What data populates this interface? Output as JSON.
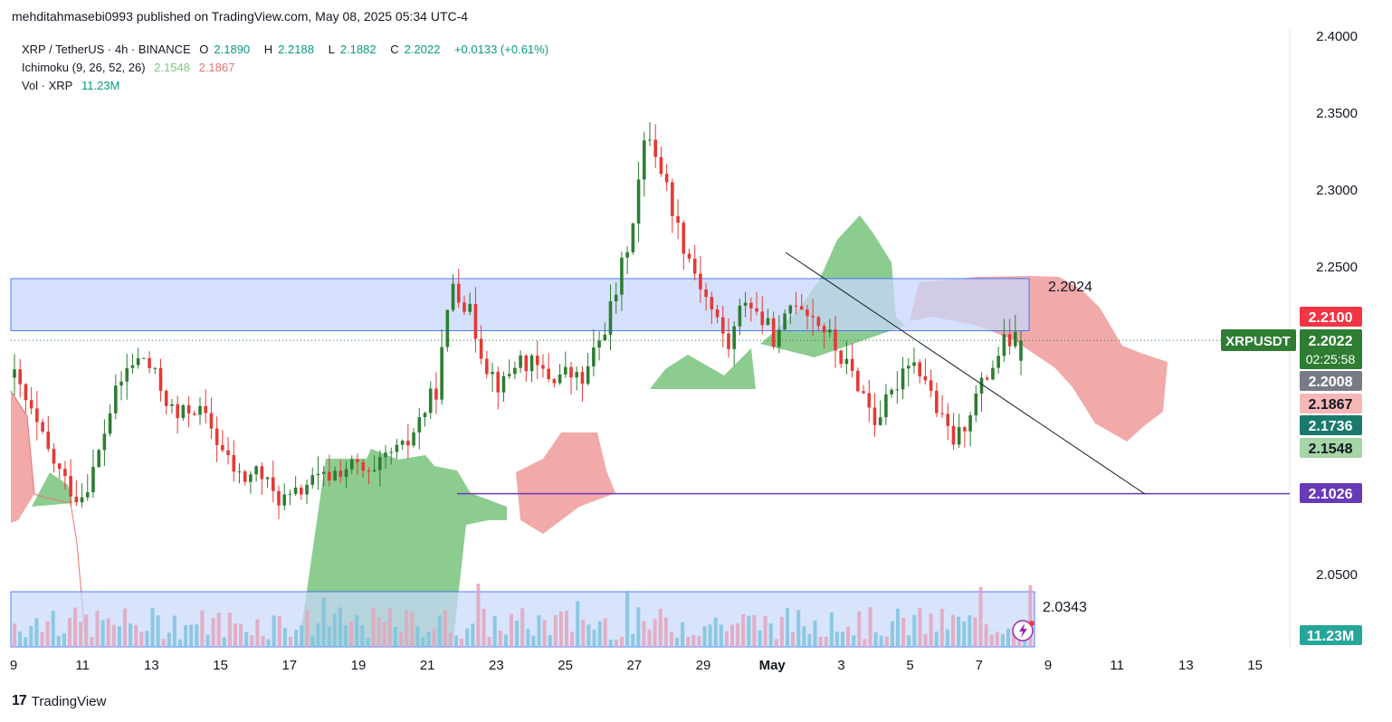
{
  "publisher": "mehditahmasebi0993 published on TradingView.com, May 08, 2025 05:34 UTC-4",
  "legend": {
    "symbol": "XRP / TetherUS · 4h · BINANCE",
    "o_label": "O",
    "o": "2.1890",
    "h_label": "H",
    "h": "2.2188",
    "l_label": "L",
    "l": "2.1882",
    "c_label": "C",
    "c": "2.2022",
    "change": "+0.0133 (+0.61%)",
    "ichimoku_label": "Ichimoku (9, 26, 52, 26)",
    "ichimoku_v1": "2.1548",
    "ichimoku_v2": "2.1867",
    "vol_label": "Vol · XRP",
    "vol_value": "11.23M"
  },
  "brand": "TradingView",
  "colors": {
    "up": "#089981",
    "down": "#f23645",
    "candle_up": "#2e7d32",
    "candle_down": "#e53935",
    "cloud_green": "#66bb6a",
    "cloud_red": "#ef9a9a",
    "zone": "#c7d7fb",
    "zone_border": "#2962ff",
    "support": "#673ab7",
    "price_tag": "#2e7d32"
  },
  "chart_data": {
    "type": "candlestick",
    "symbol": "XRPUSDT",
    "timeframe": "4h",
    "x_ticks": [
      "9",
      "11",
      "13",
      "15",
      "17",
      "19",
      "21",
      "23",
      "25",
      "27",
      "29",
      "May",
      "3",
      "5",
      "7",
      "9",
      "11",
      "13",
      "15"
    ],
    "y_ticks": [
      "2.4000",
      "2.3500",
      "2.3000",
      "2.2500",
      "2.0500"
    ],
    "ylim": [
      2.01,
      2.41
    ],
    "resistance_zone": {
      "from": 2.2085,
      "to": 2.2424,
      "label": "2.2024"
    },
    "support_line": {
      "value": 2.1026,
      "label": "2.1026"
    },
    "volume_zone_label": "2.0343",
    "trendline": {
      "from": {
        "date": "May 1",
        "price": 2.259
      },
      "to": {
        "date": "May 11",
        "price": 2.103
      }
    },
    "close_path": [
      2.178,
      2.155,
      2.131,
      2.112,
      2.099,
      2.121,
      2.161,
      2.185,
      2.191,
      2.171,
      2.151,
      2.16,
      2.148,
      2.126,
      2.111,
      2.118,
      2.101,
      2.098,
      2.109,
      2.112,
      2.118,
      2.121,
      2.111,
      2.128,
      2.131,
      2.152,
      2.171,
      2.241,
      2.221,
      2.188,
      2.171,
      2.191,
      2.185,
      2.178,
      2.181,
      2.175,
      2.201,
      2.231,
      2.276,
      2.341,
      2.308,
      2.271,
      2.245,
      2.221,
      2.198,
      2.231,
      2.216,
      2.201,
      2.231,
      2.221,
      2.208,
      2.189,
      2.174,
      2.151,
      2.165,
      2.192,
      2.181,
      2.151,
      2.135,
      2.161,
      2.181,
      2.201,
      2.202
    ],
    "ichimoku_span_a_value": "2.1548",
    "ichimoku_span_b_value": "2.1867",
    "price_labels": [
      {
        "text": "2.2100",
        "color": "#f23645"
      },
      {
        "text": "2.2022",
        "sub": "02:25:58",
        "color": "#2e7d32"
      },
      {
        "text": "2.2008",
        "color": "#787b86"
      },
      {
        "text": "2.1867",
        "color": "#f7b7b7",
        "fg": "#131722"
      },
      {
        "text": "2.1736",
        "color": "#1b7a6b"
      },
      {
        "text": "2.1548",
        "color": "#a5d6a7",
        "fg": "#131722"
      },
      {
        "text": "2.1026",
        "color": "#673ab7"
      },
      {
        "text": "11.23M",
        "color": "#26a69a"
      }
    ],
    "current_price_symbol": "XRPUSDT",
    "current_price": "2.2022",
    "countdown": "02:25:58"
  }
}
